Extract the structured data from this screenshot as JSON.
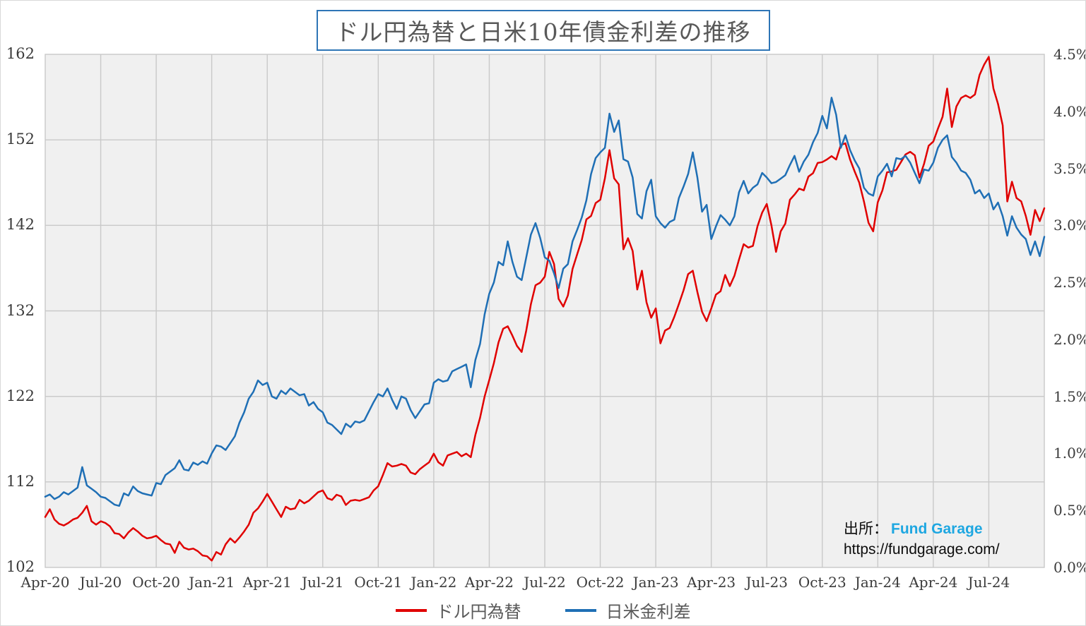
{
  "title": "ドル円為替と日米10年債金利差の推移",
  "source": {
    "prefix": "出所：",
    "name": "Fund Garage",
    "url": "https://fundgarage.com/",
    "name_color": "#1EA7E1"
  },
  "chart_data": {
    "type": "line",
    "title": "ドル円為替と日米10年債金利差の推移",
    "x_range": "2020-04 to 2024-09, values sampled ~weekly from the plotted daily series",
    "x_tick_labels": [
      "Apr-20",
      "Jul-20",
      "Oct-20",
      "Jan-21",
      "Apr-21",
      "Jul-21",
      "Oct-21",
      "Jan-22",
      "Apr-22",
      "Jul-22",
      "Oct-22",
      "Jan-23",
      "Apr-23",
      "Jul-23",
      "Oct-23",
      "Jan-24",
      "Apr-24",
      "Jul-24"
    ],
    "left_axis": {
      "min": 102,
      "max": 162,
      "tick_labels": [
        162,
        152,
        142,
        132,
        122,
        112,
        102
      ]
    },
    "right_axis": {
      "min": 0,
      "max": 4.5,
      "tick_labels": [
        "4.5%",
        "4.0%",
        "3.5%",
        "3.0%",
        "2.5%",
        "2.0%",
        "1.5%",
        "1.0%",
        "0.5%",
        "0.0%"
      ]
    },
    "grid": {
      "horizontal": "left-axis majors only",
      "vertical": "quarterly",
      "color": "#C9C9C9",
      "plot_background": "#F0F0F0"
    },
    "legend_position": "bottom",
    "series": [
      {
        "id": "usdjpy",
        "name": "ドル円為替",
        "axis": "left",
        "color": "#E00000",
        "values": [
          107.9,
          108.8,
          107.6,
          107.1,
          106.9,
          107.2,
          107.6,
          107.8,
          108.4,
          109.2,
          107.4,
          107.0,
          107.4,
          107.2,
          106.8,
          106.0,
          105.9,
          105.4,
          106.1,
          106.6,
          106.2,
          105.7,
          105.4,
          105.5,
          105.7,
          105.2,
          104.8,
          104.7,
          103.7,
          105.0,
          104.3,
          104.1,
          104.2,
          103.9,
          103.4,
          103.3,
          102.8,
          103.8,
          103.5,
          104.7,
          105.4,
          104.9,
          105.5,
          106.2,
          107.0,
          108.4,
          108.9,
          109.7,
          110.6,
          109.7,
          108.8,
          107.9,
          109.1,
          108.8,
          108.9,
          109.9,
          109.5,
          109.8,
          110.3,
          110.8,
          111.0,
          110.1,
          109.9,
          110.5,
          110.3,
          109.3,
          109.8,
          109.9,
          109.8,
          110.0,
          110.2,
          111.0,
          111.5,
          112.8,
          114.2,
          113.8,
          113.9,
          114.1,
          113.9,
          113.1,
          112.9,
          113.5,
          113.9,
          114.3,
          115.3,
          114.3,
          113.9,
          115.1,
          115.3,
          115.5,
          115.0,
          115.3,
          114.9,
          117.5,
          119.5,
          122.0,
          123.9,
          125.9,
          128.3,
          129.9,
          130.2,
          129.1,
          127.9,
          127.2,
          129.7,
          132.8,
          135.0,
          135.3,
          136.0,
          138.9,
          137.5,
          133.4,
          132.5,
          133.8,
          136.9,
          138.6,
          140.3,
          142.7,
          143.1,
          144.6,
          145.0,
          147.5,
          150.8,
          147.5,
          146.8,
          139.2,
          140.5,
          139.0,
          134.5,
          136.7,
          133.0,
          131.2,
          132.3,
          128.2,
          129.7,
          130.0,
          131.3,
          132.8,
          134.4,
          136.3,
          136.7,
          134.2,
          131.9,
          130.8,
          132.3,
          133.9,
          134.3,
          136.2,
          134.9,
          136.1,
          138.0,
          139.8,
          139.4,
          139.6,
          141.9,
          143.5,
          144.5,
          142.0,
          138.9,
          141.3,
          142.2,
          145.0,
          145.6,
          146.3,
          146.1,
          147.7,
          148.1,
          149.3,
          149.4,
          149.7,
          150.1,
          149.7,
          151.4,
          151.6,
          149.7,
          148.3,
          147.0,
          144.8,
          142.3,
          141.3,
          144.7,
          146.1,
          148.2,
          148.3,
          148.5,
          149.4,
          150.3,
          150.6,
          150.2,
          147.6,
          149.2,
          151.3,
          151.8,
          153.3,
          154.7,
          158.0,
          153.5,
          155.9,
          156.9,
          157.2,
          156.9,
          157.3,
          159.6,
          160.8,
          161.7,
          158.0,
          156.2,
          153.7,
          144.8,
          147.1,
          145.2,
          144.8,
          143.1,
          140.9,
          143.8,
          142.5,
          144.0
        ]
      },
      {
        "id": "spread",
        "name": "日米金利差",
        "axis": "right",
        "color": "#1F6FB5",
        "values": [
          0.62,
          0.64,
          0.6,
          0.62,
          0.66,
          0.64,
          0.67,
          0.7,
          0.88,
          0.72,
          0.69,
          0.66,
          0.62,
          0.61,
          0.58,
          0.55,
          0.54,
          0.65,
          0.63,
          0.71,
          0.67,
          0.65,
          0.64,
          0.63,
          0.74,
          0.73,
          0.81,
          0.84,
          0.87,
          0.94,
          0.86,
          0.85,
          0.92,
          0.9,
          0.93,
          0.91,
          1.0,
          1.07,
          1.06,
          1.03,
          1.09,
          1.15,
          1.27,
          1.36,
          1.48,
          1.54,
          1.64,
          1.6,
          1.62,
          1.5,
          1.48,
          1.55,
          1.52,
          1.57,
          1.54,
          1.51,
          1.52,
          1.42,
          1.45,
          1.39,
          1.36,
          1.27,
          1.25,
          1.21,
          1.17,
          1.26,
          1.23,
          1.28,
          1.27,
          1.29,
          1.37,
          1.45,
          1.52,
          1.5,
          1.57,
          1.47,
          1.39,
          1.5,
          1.48,
          1.38,
          1.31,
          1.37,
          1.43,
          1.44,
          1.62,
          1.65,
          1.63,
          1.64,
          1.72,
          1.74,
          1.76,
          1.78,
          1.58,
          1.82,
          1.96,
          2.22,
          2.4,
          2.5,
          2.68,
          2.65,
          2.86,
          2.68,
          2.55,
          2.52,
          2.72,
          2.92,
          3.02,
          2.89,
          2.72,
          2.69,
          2.58,
          2.45,
          2.62,
          2.66,
          2.86,
          2.96,
          3.07,
          3.22,
          3.45,
          3.59,
          3.64,
          3.68,
          3.98,
          3.82,
          3.92,
          3.58,
          3.56,
          3.42,
          3.1,
          3.06,
          3.3,
          3.4,
          3.08,
          3.02,
          2.98,
          3.03,
          3.05,
          3.24,
          3.34,
          3.45,
          3.64,
          3.42,
          3.12,
          3.18,
          2.88,
          2.99,
          3.09,
          3.05,
          3.0,
          3.08,
          3.29,
          3.39,
          3.28,
          3.33,
          3.36,
          3.46,
          3.42,
          3.37,
          3.38,
          3.41,
          3.44,
          3.53,
          3.61,
          3.47,
          3.56,
          3.62,
          3.73,
          3.81,
          3.96,
          3.85,
          4.12,
          3.97,
          3.68,
          3.79,
          3.66,
          3.57,
          3.5,
          3.33,
          3.28,
          3.26,
          3.43,
          3.48,
          3.54,
          3.43,
          3.59,
          3.58,
          3.61,
          3.55,
          3.46,
          3.37,
          3.49,
          3.48,
          3.55,
          3.68,
          3.75,
          3.79,
          3.6,
          3.55,
          3.48,
          3.46,
          3.4,
          3.28,
          3.31,
          3.24,
          3.28,
          3.14,
          3.2,
          3.08,
          2.91,
          3.08,
          2.98,
          2.92,
          2.88,
          2.74,
          2.86,
          2.73,
          2.9
        ]
      }
    ]
  }
}
